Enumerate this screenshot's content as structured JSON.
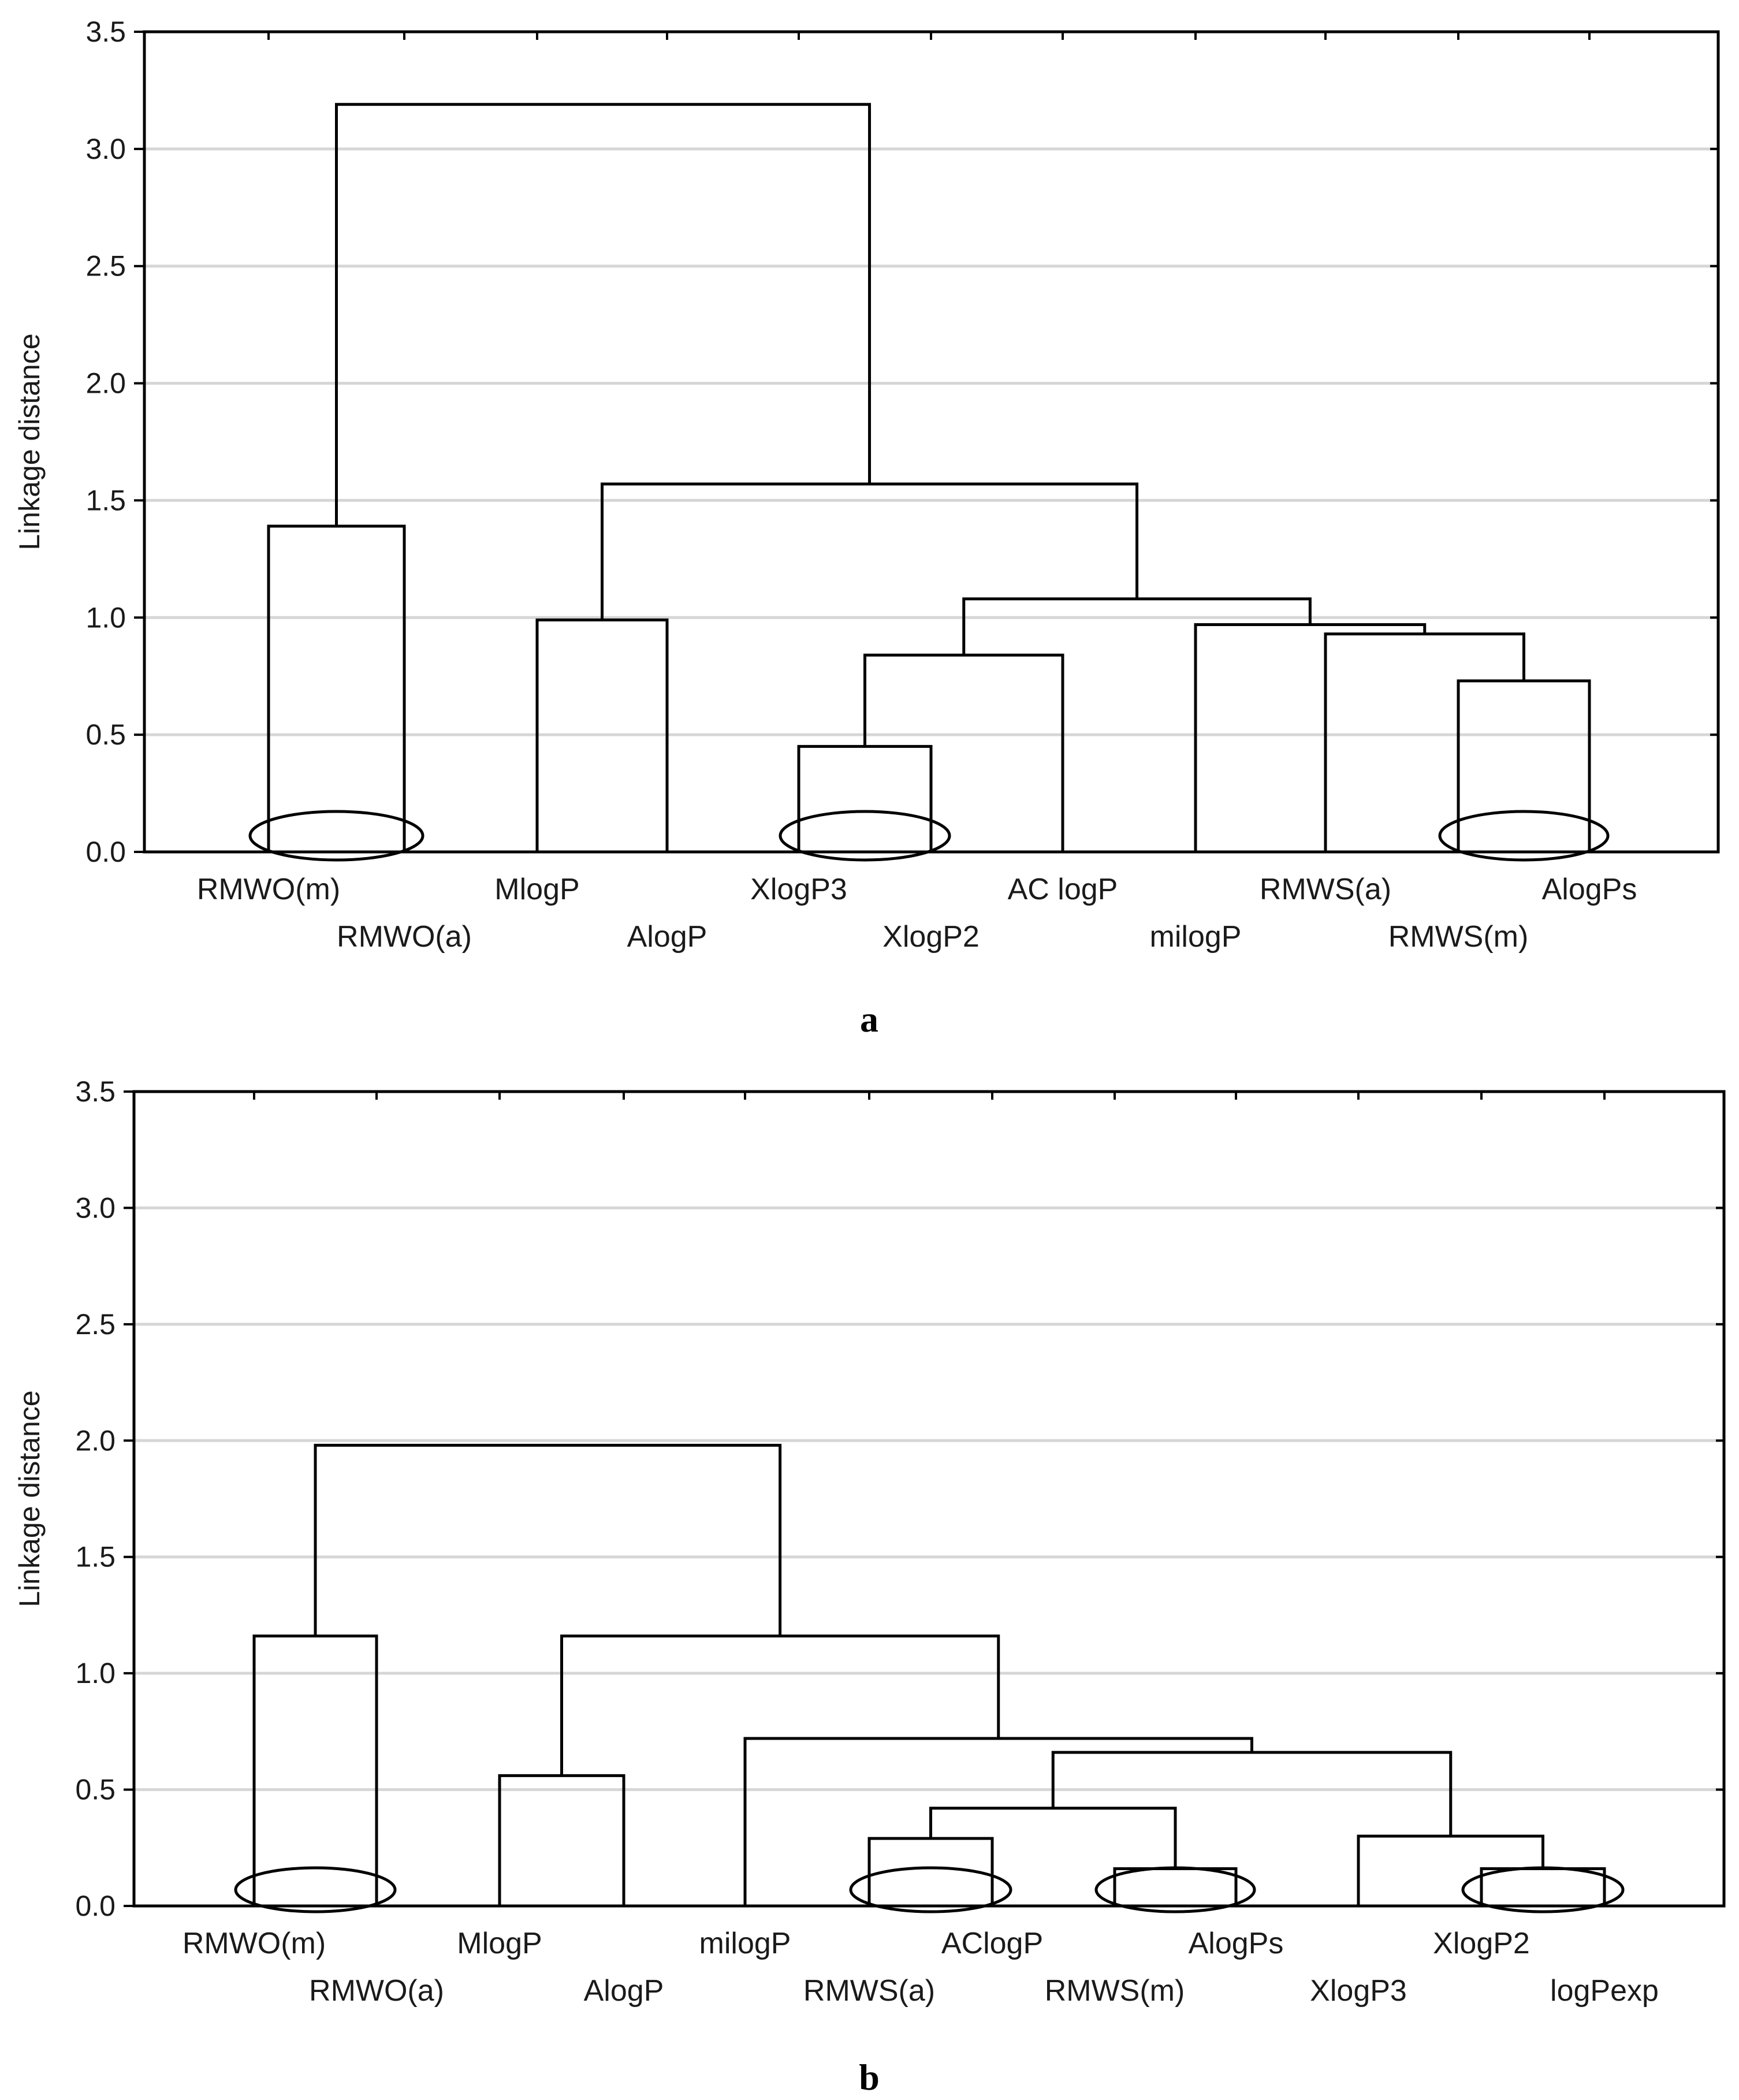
{
  "chart_data": [
    {
      "type": "dendrogram",
      "panel": "a",
      "ylabel": "Linkage distance",
      "ylim": [
        0,
        3.5
      ],
      "yticks": [
        "0.0",
        "0.5",
        "1.0",
        "1.5",
        "2.0",
        "2.5",
        "3.0",
        "3.5"
      ],
      "grid": true,
      "leaves": [
        "RMWO(m)",
        "RMWO(a)",
        "MlogP",
        "AlogP",
        "XlogP3",
        "XlogP2",
        "AC logP",
        "milogP",
        "RMWS(a)",
        "RMWS(m)",
        "AlogPs"
      ],
      "merges": [
        {
          "left": 4,
          "right": 5,
          "height": 0.45
        },
        {
          "left": 9,
          "right": 10,
          "height": 0.73
        },
        {
          "left": "m0",
          "right": 6,
          "height": 0.84
        },
        {
          "left": 8,
          "right": "m1",
          "height": 0.93
        },
        {
          "left": 7,
          "right": "m3",
          "height": 0.97
        },
        {
          "left": 2,
          "right": 3,
          "height": 0.99
        },
        {
          "left": "m2",
          "right": "m4",
          "height": 1.08
        },
        {
          "left": 0,
          "right": 1,
          "height": 1.39
        },
        {
          "left": "m5",
          "right": "m6",
          "height": 1.57
        },
        {
          "left": "m7",
          "right": "m8",
          "height": 3.19
        }
      ],
      "highlighted_leaf_pairs": [
        [
          0,
          1
        ],
        [
          4,
          5
        ],
        [
          9,
          10
        ]
      ]
    },
    {
      "type": "dendrogram",
      "panel": "b",
      "ylabel": "Linkage distance",
      "ylim": [
        0,
        3.5
      ],
      "yticks": [
        "0.0",
        "0.5",
        "1.0",
        "1.5",
        "2.0",
        "2.5",
        "3.0",
        "3.5"
      ],
      "grid": true,
      "leaves": [
        "RMWO(m)",
        "RMWO(a)",
        "MlogP",
        "AlogP",
        "milogP",
        "RMWS(a)",
        "AClogP",
        "RMWS(m)",
        "AlogPs",
        "XlogP3",
        "XlogP2",
        "logPexp"
      ],
      "merges": [
        {
          "left": 7,
          "right": 8,
          "height": 0.16
        },
        {
          "left": 10,
          "right": 11,
          "height": 0.16
        },
        {
          "left": 5,
          "right": 6,
          "height": 0.29
        },
        {
          "left": 9,
          "right": "m1",
          "height": 0.3
        },
        {
          "left": "m2",
          "right": "m0",
          "height": 0.42
        },
        {
          "left": 2,
          "right": 3,
          "height": 0.56
        },
        {
          "left": "m4",
          "right": "m3",
          "height": 0.66
        },
        {
          "left": 4,
          "right": "m6",
          "height": 0.72
        },
        {
          "left": 0,
          "right": 1,
          "height": 1.16
        },
        {
          "left": "m5",
          "right": "m7",
          "height": 1.16
        },
        {
          "left": "m8",
          "right": "m9",
          "height": 1.98
        }
      ],
      "highlighted_leaf_pairs": [
        [
          0,
          1
        ],
        [
          5,
          6
        ],
        [
          7,
          8
        ],
        [
          10,
          11
        ]
      ]
    }
  ],
  "panel_labels": {
    "a": "a",
    "b": "b"
  }
}
